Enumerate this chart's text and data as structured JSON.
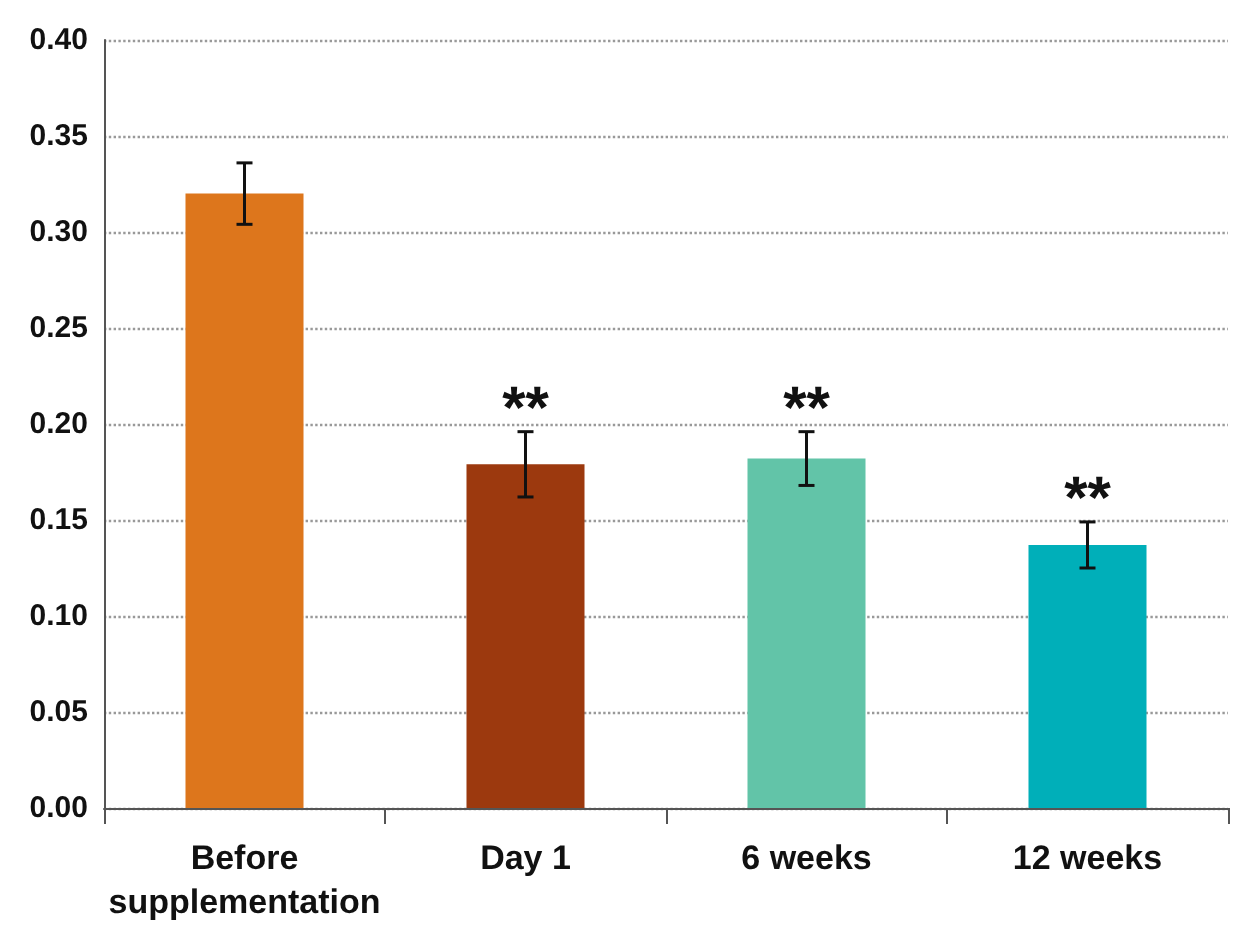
{
  "chart_data": {
    "type": "bar",
    "categories": [
      "Before\nsupplementation",
      "Day 1",
      "6 weeks",
      "12 weeks"
    ],
    "values": [
      0.32,
      0.179,
      0.182,
      0.137
    ],
    "colors": [
      "#dd761c",
      "#9c390e",
      "#62c4a8",
      "#00afb9"
    ],
    "errors": [
      0.016,
      0.017,
      0.014,
      0.012
    ],
    "ylim": [
      0,
      0.4
    ],
    "yticks": [
      {
        "value": 0,
        "label": "0.00"
      },
      {
        "value": 0.05,
        "label": "0.05"
      },
      {
        "value": 0.1,
        "label": "0.10"
      },
      {
        "value": 0.15,
        "label": "0.15"
      },
      {
        "value": 0.2,
        "label": "0.20"
      },
      {
        "value": 0.25,
        "label": "0.25"
      },
      {
        "value": 0.3,
        "label": "0.30"
      },
      {
        "value": 0.35,
        "label": "0.35"
      },
      {
        "value": 0.4,
        "label": "0.40"
      }
    ],
    "grid": "y",
    "annotations": [
      {
        "text": "**",
        "x": "Day 1",
        "y": 0.179
      },
      {
        "text": "**",
        "x": "6 weeks",
        "y": 0.182
      },
      {
        "text": "**",
        "x": "12 weeks",
        "y": 0.137
      }
    ]
  }
}
